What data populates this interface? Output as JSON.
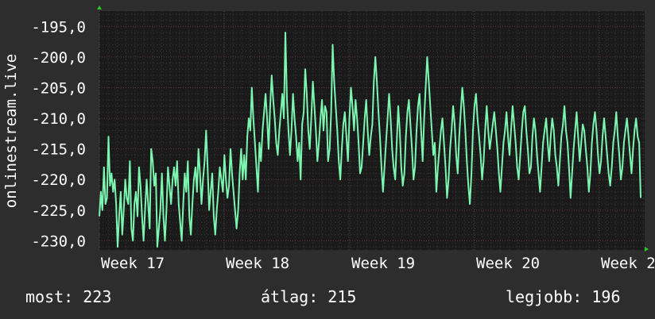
{
  "chart_data": {
    "type": "line",
    "ylabel": "onlinestream.live",
    "y_ticks": [
      -195.0,
      -200.0,
      -205.0,
      -210.0,
      -215.0,
      -220.0,
      -225.0,
      -230.0
    ],
    "y_tick_labels": [
      "-195,0",
      "-200,0",
      "-205,0",
      "-210,0",
      "-215,0",
      "-220,0",
      "-225,0",
      "-230,0"
    ],
    "ylim": [
      -231.5,
      -192.5
    ],
    "x_ticks": [
      "Week 17",
      "Week 18",
      "Week 19",
      "Week 20",
      "Week 2"
    ],
    "grid": true,
    "colors": {
      "background": "#2d2d2d",
      "plot": "#1a1a1a",
      "grid_major": "#5a3a3a",
      "grid_minor": "#3a3a3a",
      "line": "#7cf5b0",
      "axis_arrow": "#22cc22"
    },
    "series": [
      {
        "values": [
          -226,
          -222,
          -225,
          -218,
          -224,
          -223,
          -213,
          -221,
          -219,
          -222,
          -220,
          -224,
          -231,
          -226,
          -222,
          -229,
          -225,
          -220,
          -223,
          -224,
          -217,
          -228,
          -230,
          -224,
          -222,
          -226,
          -218,
          -221,
          -226,
          -230,
          -225,
          -220,
          -224,
          -228,
          -215,
          -217,
          -221,
          -219,
          -231,
          -228,
          -225,
          -219,
          -226,
          -230,
          -225,
          -218,
          -221,
          -224,
          -220,
          -218,
          -221,
          -217,
          -224,
          -227,
          -230,
          -224,
          -219,
          -222,
          -217,
          -226,
          -229,
          -224,
          -220,
          -218,
          -222,
          -215,
          -219,
          -224,
          -220,
          -217,
          -212,
          -218,
          -225,
          -222,
          -219,
          -226,
          -229,
          -225,
          -222,
          -218,
          -220,
          -222,
          -216,
          -220,
          -223,
          -221,
          -215,
          -219,
          -222,
          -225,
          -228,
          -225,
          -219,
          -215,
          -220,
          -216,
          -220,
          -213,
          -210,
          -212,
          -205,
          -210,
          -214,
          -218,
          -222,
          -214,
          -217,
          -212,
          -209,
          -206,
          -210,
          -215,
          -208,
          -203,
          -207,
          -210,
          -214,
          -216,
          -212,
          -209,
          -206,
          -210,
          -196,
          -207,
          -212,
          -216,
          -212,
          -206,
          -210,
          -213,
          -217,
          -214,
          -220,
          -211,
          -209,
          -202,
          -206,
          -212,
          -215,
          -210,
          -204,
          -208,
          -212,
          -217,
          -214,
          -210,
          -207,
          -212,
          -208,
          -209,
          -217,
          -215,
          -209,
          -198,
          -204,
          -208,
          -212,
          -217,
          -220,
          -215,
          -211,
          -209,
          -213,
          -217,
          -210,
          -205,
          -208,
          -212,
          -207,
          -210,
          -214,
          -219,
          -218,
          -214,
          -210,
          -207,
          -212,
          -216,
          -213,
          -211,
          -204,
          -200,
          -204,
          -209,
          -213,
          -218,
          -222,
          -218,
          -214,
          -210,
          -206,
          -210,
          -215,
          -218,
          -220,
          -214,
          -208,
          -212,
          -218,
          -221,
          -219,
          -213,
          -209,
          -207,
          -211,
          -215,
          -220,
          -218,
          -212,
          -208,
          -206,
          -212,
          -217,
          -210,
          -205,
          -200,
          -204,
          -208,
          -212,
          -216,
          -214,
          -222,
          -218,
          -215,
          -212,
          -210,
          -214,
          -218,
          -223,
          -220,
          -215,
          -212,
          -208,
          -211,
          -216,
          -219,
          -213,
          -209,
          -205,
          -208,
          -212,
          -217,
          -221,
          -224,
          -219,
          -212,
          -208,
          -206,
          -210,
          -213,
          -216,
          -220,
          -217,
          -212,
          -208,
          -212,
          -215,
          -213,
          -211,
          -209,
          -212,
          -215,
          -219,
          -222,
          -218,
          -214,
          -212,
          -209,
          -213,
          -216,
          -212,
          -208,
          -211,
          -214,
          -218,
          -220,
          -216,
          -212,
          -209,
          -208,
          -212,
          -215,
          -219,
          -218,
          -213,
          -210,
          -212,
          -216,
          -219,
          -222,
          -218,
          -214,
          -212,
          -210,
          -214,
          -217,
          -213,
          -210,
          -212,
          -216,
          -218,
          -221,
          -217,
          -213,
          -211,
          -208,
          -212,
          -214,
          -218,
          -223,
          -219,
          -215,
          -212,
          -209,
          -213,
          -217,
          -214,
          -211,
          -212,
          -215,
          -218,
          -222,
          -219,
          -214,
          -211,
          -209,
          -212,
          -216,
          -219,
          -217,
          -213,
          -210,
          -213,
          -216,
          -219,
          -221,
          -218,
          -214,
          -212,
          -209,
          -213,
          -216,
          -220,
          -218,
          -214,
          -212,
          -210,
          -213,
          -216,
          -219,
          -215,
          -212,
          -210,
          -213,
          -214,
          -223
        ]
      }
    ]
  },
  "footer": {
    "now": "most: 223",
    "avg": "átlag: 215",
    "best": "legjobb: 196"
  }
}
